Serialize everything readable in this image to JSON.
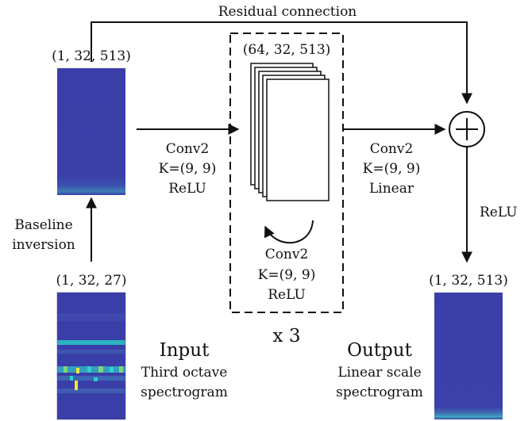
{
  "residual_label": "Residual connection",
  "shapes": {
    "baseline": "(1, 32, 513)",
    "hidden": "(64, 32, 513)",
    "input": "(1, 32, 27)",
    "output": "(1, 32, 513)"
  },
  "conv_in": {
    "line1": "Conv2",
    "line2": "K=(9, 9)",
    "line3": "ReLU"
  },
  "conv_loop": {
    "line1": "Conv2",
    "line2": "K=(9, 9)",
    "line3": "ReLU"
  },
  "conv_out": {
    "line1": "Conv2",
    "line2": "K=(9, 9)",
    "line3": "Linear"
  },
  "repeat_label": "x 3",
  "relu_label": "ReLU",
  "baseline_label": {
    "line1": "Baseline",
    "line2": "inversion"
  },
  "input_label": {
    "title": "Input",
    "line1": "Third octave",
    "line2": "spectrogram"
  },
  "output_label": {
    "title": "Output",
    "line1": "Linear scale",
    "line2": "spectrogram"
  },
  "colors": {
    "spectrogram_bg": "#3b3fa8",
    "highlight_cyan": "#2fd0d0",
    "highlight_yellow": "#f2e53a",
    "highlight_green": "#7fd67a",
    "stroke": "#111111"
  }
}
